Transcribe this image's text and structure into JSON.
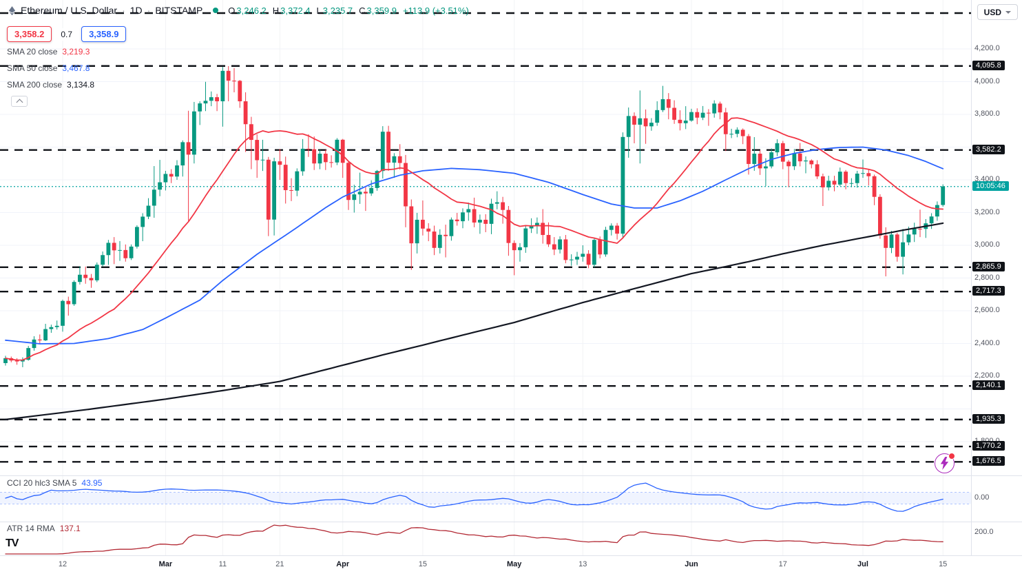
{
  "header": {
    "symbol_title": "Ethereum / U.S. Dollar",
    "sep": "·",
    "interval": "1D",
    "exchange": "BITSTAMP",
    "ohlc": {
      "o_label": "O",
      "o": "3,246.2",
      "h_label": "H",
      "h": "3,372.4",
      "l_label": "L",
      "l": "3,235.7",
      "c_label": "C",
      "c": "3,359.9",
      "change": "+113.9 (+3.51%)"
    },
    "trade": {
      "sell": "3,358.2",
      "spread": "0.7",
      "buy": "3,358.9"
    },
    "currency": "USD"
  },
  "legend": {
    "sma20": {
      "label": "SMA 20 close",
      "value": "3,219.3",
      "color": "#f23645"
    },
    "sma50": {
      "label": "SMA 50 close",
      "value": "3,467.8",
      "color": "#2962ff"
    },
    "sma200": {
      "label": "SMA 200 close",
      "value": "3,134.8",
      "color": "#131722"
    },
    "cci": {
      "label": "CCI 20 hlc3 SMA 5",
      "value": "43.95",
      "color": "#2962ff"
    },
    "atr": {
      "label": "ATR 14 RMA",
      "value": "137.1",
      "color": "#b22833"
    }
  },
  "footer": {
    "logo": "TV"
  },
  "chart_data": {
    "type": "candlestick",
    "symbol": "ETHUSD",
    "exchange": "BITSTAMP",
    "interval": "1D",
    "title": "Ethereum / U.S. Dollar",
    "ylim": [
      1594,
      4499
    ],
    "last_price": 3358.9,
    "countdown": "10:05:46",
    "grid": true,
    "y_tick_labels": [
      4200,
      4000,
      3800,
      3400,
      3200,
      3000,
      2800,
      2600,
      2400,
      2200,
      1800
    ],
    "x_ticks": [
      {
        "i": 10,
        "label": "12"
      },
      {
        "i": 28,
        "label": "Mar"
      },
      {
        "i": 38,
        "label": "11"
      },
      {
        "i": 48,
        "label": "21"
      },
      {
        "i": 59,
        "label": "Apr"
      },
      {
        "i": 73,
        "label": "15"
      },
      {
        "i": 89,
        "label": "May"
      },
      {
        "i": 101,
        "label": "13"
      },
      {
        "i": 120,
        "label": "Jun"
      },
      {
        "i": 136,
        "label": "17"
      },
      {
        "i": 150,
        "label": "Jul"
      },
      {
        "i": 164,
        "label": "15"
      }
    ],
    "levels": [
      {
        "value": 4418.9,
        "labeled": false
      },
      {
        "value": 4095.8,
        "labeled": true
      },
      {
        "value": 3582.2,
        "labeled": true
      },
      {
        "value": 2865.9,
        "labeled": true
      },
      {
        "value": 2717.3,
        "labeled": true
      },
      {
        "value": 2140.1,
        "labeled": true
      },
      {
        "value": 1935.3,
        "labeled": true
      },
      {
        "value": 1770.2,
        "labeled": true
      },
      {
        "value": 1676.5,
        "labeled": true
      }
    ],
    "cci_band": [
      -100,
      100
    ],
    "cci_axis_label": "0.00",
    "atr_axis_label": "200.0",
    "colors": {
      "up": "#089981",
      "down": "#f23645",
      "sma20": "#f23645",
      "sma50": "#2962ff",
      "sma200": "#131722",
      "level": "#101318",
      "price_line": "#00a2a0",
      "cci": "#2962ff",
      "cci_band_fill": "rgba(41,98,255,0.07)",
      "atr": "#b22833",
      "axis_chip_bg": "#101318",
      "grid": "#f0f3fa"
    },
    "overlays": {
      "sma50_anchors": [
        [
          0,
          2420
        ],
        [
          6,
          2398
        ],
        [
          12,
          2400
        ],
        [
          18,
          2430
        ],
        [
          24,
          2485
        ],
        [
          28,
          2555
        ],
        [
          34,
          2665
        ],
        [
          38,
          2785
        ],
        [
          44,
          2945
        ],
        [
          50,
          3085
        ],
        [
          56,
          3230
        ],
        [
          59,
          3295
        ],
        [
          64,
          3375
        ],
        [
          69,
          3428
        ],
        [
          73,
          3455
        ],
        [
          78,
          3470
        ],
        [
          83,
          3462
        ],
        [
          89,
          3440
        ],
        [
          95,
          3385
        ],
        [
          101,
          3310
        ],
        [
          106,
          3252
        ],
        [
          110,
          3228
        ],
        [
          114,
          3228
        ],
        [
          118,
          3272
        ],
        [
          122,
          3330
        ],
        [
          126,
          3400
        ],
        [
          130,
          3468
        ],
        [
          134,
          3525
        ],
        [
          138,
          3562
        ],
        [
          142,
          3585
        ],
        [
          146,
          3598
        ],
        [
          150,
          3600
        ],
        [
          154,
          3582
        ],
        [
          158,
          3548
        ],
        [
          161,
          3512
        ],
        [
          164,
          3468
        ]
      ],
      "sma200_anchors": [
        [
          0,
          1935
        ],
        [
          14,
          1995
        ],
        [
          28,
          2060
        ],
        [
          38,
          2112
        ],
        [
          48,
          2168
        ],
        [
          59,
          2267
        ],
        [
          66,
          2330
        ],
        [
          73,
          2390
        ],
        [
          81,
          2460
        ],
        [
          89,
          2528
        ],
        [
          95,
          2590
        ],
        [
          101,
          2650
        ],
        [
          110,
          2735
        ],
        [
          120,
          2827
        ],
        [
          126,
          2870
        ],
        [
          130,
          2900
        ],
        [
          136,
          2948
        ],
        [
          143,
          3000
        ],
        [
          150,
          3046
        ],
        [
          157,
          3092
        ],
        [
          164,
          3135
        ]
      ]
    },
    "candles": [
      [
        2280,
        2325,
        2265,
        2310
      ],
      [
        2310,
        2320,
        2285,
        2296
      ],
      [
        2296,
        2310,
        2270,
        2290
      ],
      [
        2290,
        2315,
        2255,
        2300
      ],
      [
        2300,
        2385,
        2295,
        2372
      ],
      [
        2372,
        2444,
        2356,
        2424
      ],
      [
        2424,
        2455,
        2400,
        2419
      ],
      [
        2419,
        2520,
        2415,
        2488
      ],
      [
        2488,
        2515,
        2465,
        2500
      ],
      [
        2500,
        2540,
        2485,
        2508
      ],
      [
        2508,
        2668,
        2472,
        2660
      ],
      [
        2660,
        2686,
        2570,
        2640
      ],
      [
        2640,
        2786,
        2630,
        2776
      ],
      [
        2776,
        2872,
        2760,
        2820
      ],
      [
        2820,
        2870,
        2765,
        2800
      ],
      [
        2800,
        2825,
        2740,
        2786
      ],
      [
        2786,
        2895,
        2775,
        2881
      ],
      [
        2881,
        2962,
        2870,
        2940
      ],
      [
        2940,
        3033,
        2880,
        3015
      ],
      [
        3015,
        3050,
        2885,
        2969
      ],
      [
        2969,
        3026,
        2905,
        2971
      ],
      [
        2971,
        3005,
        2900,
        2921
      ],
      [
        2921,
        3005,
        2910,
        2992
      ],
      [
        2992,
        3122,
        2980,
        3112
      ],
      [
        3112,
        3196,
        3025,
        3175
      ],
      [
        3175,
        3288,
        3160,
        3242
      ],
      [
        3242,
        3484,
        3168,
        3340
      ],
      [
        3340,
        3522,
        3300,
        3385
      ],
      [
        3385,
        3455,
        3335,
        3436
      ],
      [
        3436,
        3465,
        3380,
        3420
      ],
      [
        3420,
        3520,
        3400,
        3488
      ],
      [
        3488,
        3641,
        3420,
        3630
      ],
      [
        3630,
        3822,
        3150,
        3554
      ],
      [
        3554,
        3876,
        3500,
        3818
      ],
      [
        3818,
        3880,
        3735,
        3867
      ],
      [
        3867,
        3999,
        3820,
        3883
      ],
      [
        3883,
        3940,
        3850,
        3905
      ],
      [
        3905,
        3925,
        3820,
        3880
      ],
      [
        3880,
        4090,
        3725,
        4066
      ],
      [
        4066,
        4095,
        3880,
        4006
      ],
      [
        4006,
        4083,
        3935,
        4005
      ],
      [
        4005,
        4010,
        3840,
        3880
      ],
      [
        3880,
        3935,
        3570,
        3740
      ],
      [
        3740,
        3785,
        3465,
        3644
      ],
      [
        3644,
        3678,
        3412,
        3520
      ],
      [
        3520,
        3645,
        3454,
        3523
      ],
      [
        3523,
        3540,
        3056,
        3157
      ],
      [
        3157,
        3535,
        3060,
        3513
      ],
      [
        3513,
        3588,
        3400,
        3492
      ],
      [
        3492,
        3542,
        3255,
        3337
      ],
      [
        3337,
        3410,
        3270,
        3334
      ],
      [
        3334,
        3470,
        3300,
        3452
      ],
      [
        3452,
        3649,
        3425,
        3590
      ],
      [
        3590,
        3678,
        3540,
        3587
      ],
      [
        3587,
        3665,
        3460,
        3500
      ],
      [
        3500,
        3584,
        3465,
        3560
      ],
      [
        3560,
        3585,
        3460,
        3508
      ],
      [
        3508,
        3550,
        3475,
        3506
      ],
      [
        3506,
        3655,
        3490,
        3645
      ],
      [
        3645,
        3650,
        3412,
        3504
      ],
      [
        3504,
        3510,
        3216,
        3277
      ],
      [
        3277,
        3370,
        3200,
        3311
      ],
      [
        3311,
        3444,
        3253,
        3327
      ],
      [
        3327,
        3355,
        3210,
        3317
      ],
      [
        3317,
        3397,
        3302,
        3350
      ],
      [
        3350,
        3460,
        3333,
        3454
      ],
      [
        3454,
        3728,
        3408,
        3694
      ],
      [
        3694,
        3730,
        3455,
        3505
      ],
      [
        3505,
        3563,
        3412,
        3544
      ],
      [
        3544,
        3618,
        3463,
        3503
      ],
      [
        3503,
        3552,
        3110,
        3238
      ],
      [
        3238,
        3280,
        2850,
        3012
      ],
      [
        3012,
        3198,
        2950,
        3156
      ],
      [
        3156,
        3274,
        3060,
        3102
      ],
      [
        3102,
        3135,
        3025,
        3084
      ],
      [
        3084,
        3120,
        2940,
        2984
      ],
      [
        2984,
        3098,
        2950,
        3064
      ],
      [
        3064,
        3126,
        2926,
        3056
      ],
      [
        3056,
        3170,
        3028,
        3157
      ],
      [
        3157,
        3198,
        3120,
        3147
      ],
      [
        3147,
        3226,
        3104,
        3201
      ],
      [
        3201,
        3261,
        3150,
        3221
      ],
      [
        3221,
        3291,
        3110,
        3139
      ],
      [
        3139,
        3188,
        3070,
        3156
      ],
      [
        3156,
        3190,
        3080,
        3131
      ],
      [
        3131,
        3285,
        3068,
        3254
      ],
      [
        3254,
        3330,
        3220,
        3263
      ],
      [
        3263,
        3296,
        3132,
        3216
      ],
      [
        3216,
        3240,
        2936,
        3014
      ],
      [
        3014,
        3030,
        2817,
        2970
      ],
      [
        2970,
        3013,
        2900,
        2988
      ],
      [
        2988,
        3120,
        2954,
        3103
      ],
      [
        3103,
        3165,
        3075,
        3117
      ],
      [
        3117,
        3170,
        3070,
        3137
      ],
      [
        3137,
        3221,
        3010,
        3063
      ],
      [
        3063,
        3140,
        2990,
        3006
      ],
      [
        3006,
        3050,
        2940,
        2974
      ],
      [
        2974,
        3055,
        2950,
        3036
      ],
      [
        3036,
        3063,
        2890,
        2910
      ],
      [
        2910,
        2945,
        2875,
        2913
      ],
      [
        2913,
        2960,
        2880,
        2930
      ],
      [
        2930,
        3000,
        2900,
        2948
      ],
      [
        2948,
        2970,
        2860,
        2881
      ],
      [
        2881,
        3041,
        2865,
        3033
      ],
      [
        3033,
        3054,
        2920,
        2944
      ],
      [
        2944,
        3113,
        2930,
        3094
      ],
      [
        3094,
        3134,
        3060,
        3120
      ],
      [
        3120,
        3136,
        3035,
        3071
      ],
      [
        3071,
        3690,
        3045,
        3662
      ],
      [
        3662,
        3842,
        3535,
        3790
      ],
      [
        3790,
        3812,
        3623,
        3737
      ],
      [
        3737,
        3946,
        3500,
        3776
      ],
      [
        3776,
        3830,
        3620,
        3727
      ],
      [
        3727,
        3777,
        3700,
        3749
      ],
      [
        3749,
        3880,
        3730,
        3826
      ],
      [
        3826,
        3974,
        3814,
        3893
      ],
      [
        3893,
        3930,
        3770,
        3840
      ],
      [
        3840,
        3886,
        3742,
        3767
      ],
      [
        3767,
        3825,
        3702,
        3746
      ],
      [
        3746,
        3850,
        3710,
        3762
      ],
      [
        3762,
        3834,
        3755,
        3814
      ],
      [
        3814,
        3837,
        3740,
        3780
      ],
      [
        3780,
        3851,
        3765,
        3810
      ],
      [
        3810,
        3832,
        3730,
        3806
      ],
      [
        3806,
        3886,
        3780,
        3866
      ],
      [
        3866,
        3878,
        3770,
        3812
      ],
      [
        3812,
        3840,
        3576,
        3679
      ],
      [
        3679,
        3712,
        3655,
        3681
      ],
      [
        3681,
        3721,
        3660,
        3706
      ],
      [
        3706,
        3714,
        3618,
        3667
      ],
      [
        3667,
        3680,
        3432,
        3497
      ],
      [
        3497,
        3661,
        3455,
        3560
      ],
      [
        3560,
        3580,
        3430,
        3470
      ],
      [
        3470,
        3532,
        3362,
        3482
      ],
      [
        3482,
        3592,
        3470,
        3568
      ],
      [
        3568,
        3648,
        3545,
        3624
      ],
      [
        3624,
        3638,
        3465,
        3511
      ],
      [
        3511,
        3521,
        3355,
        3483
      ],
      [
        3483,
        3589,
        3460,
        3561
      ],
      [
        3561,
        3625,
        3482,
        3513
      ],
      [
        3513,
        3543,
        3440,
        3518
      ],
      [
        3518,
        3525,
        3470,
        3495
      ],
      [
        3495,
        3520,
        3405,
        3421
      ],
      [
        3421,
        3438,
        3240,
        3354
      ],
      [
        3354,
        3425,
        3335,
        3394
      ],
      [
        3394,
        3425,
        3330,
        3371
      ],
      [
        3371,
        3475,
        3362,
        3450
      ],
      [
        3450,
        3460,
        3342,
        3380
      ],
      [
        3380,
        3410,
        3355,
        3380
      ],
      [
        3380,
        3455,
        3352,
        3438
      ],
      [
        3438,
        3524,
        3412,
        3441
      ],
      [
        3441,
        3465,
        3365,
        3422
      ],
      [
        3422,
        3432,
        3245,
        3296
      ],
      [
        3296,
        3312,
        3040,
        3060
      ],
      [
        3060,
        3110,
        2810,
        2984
      ],
      [
        2984,
        3088,
        2952,
        3066
      ],
      [
        3066,
        3076,
        2900,
        2930
      ],
      [
        2930,
        3100,
        2822,
        3018
      ],
      [
        3018,
        3114,
        3000,
        3066
      ],
      [
        3066,
        3138,
        3020,
        3101
      ],
      [
        3101,
        3218,
        3050,
        3100
      ],
      [
        3100,
        3160,
        3045,
        3134
      ],
      [
        3134,
        3196,
        3100,
        3176
      ],
      [
        3176,
        3268,
        3150,
        3246
      ],
      [
        3246.2,
        3372.4,
        3235.7,
        3359.9
      ]
    ]
  }
}
